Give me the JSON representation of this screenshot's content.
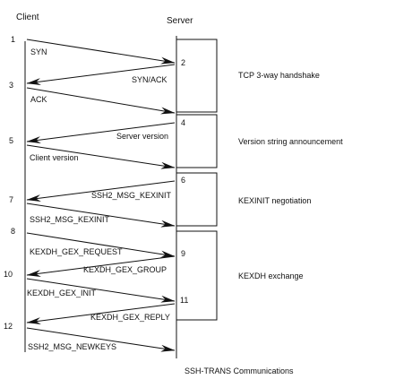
{
  "header": {
    "client": "Client",
    "server": "Server"
  },
  "client_steps": [
    "1",
    "3",
    "5",
    "7",
    "8",
    "10",
    "12"
  ],
  "server_steps": [
    "2",
    "4",
    "6",
    "9",
    "11"
  ],
  "messages": [
    {
      "id": "syn",
      "label": "SYN",
      "direction": "client-to-server"
    },
    {
      "id": "syn-ack",
      "label": "SYN/ACK",
      "direction": "server-to-client"
    },
    {
      "id": "ack",
      "label": "ACK",
      "direction": "client-to-server"
    },
    {
      "id": "server-version",
      "label": "Server version",
      "direction": "server-to-client"
    },
    {
      "id": "client-version",
      "label": "Client version",
      "direction": "client-to-server"
    },
    {
      "id": "server-kexinit",
      "label": "SSH2_MSG_KEXINIT",
      "direction": "server-to-client"
    },
    {
      "id": "client-kexinit",
      "label": "SSH2_MSG_KEXINIT",
      "direction": "client-to-server"
    },
    {
      "id": "gex-request",
      "label": "KEXDH_GEX_REQUEST",
      "direction": "client-to-server"
    },
    {
      "id": "gex-group",
      "label": "KEXDH_GEX_GROUP",
      "direction": "server-to-client"
    },
    {
      "id": "gex-init",
      "label": "KEXDH_GEX_INIT",
      "direction": "client-to-server"
    },
    {
      "id": "gex-reply",
      "label": "KEXDH_GEX_REPLY",
      "direction": "server-to-client"
    },
    {
      "id": "newkeys",
      "label": "SSH2_MSG_NEWKEYS",
      "direction": "client-to-server"
    }
  ],
  "phases": [
    {
      "id": "tcp",
      "label": "TCP 3-way handshake"
    },
    {
      "id": "version",
      "label": "Version string announcement"
    },
    {
      "id": "kexinit",
      "label": "KEXINIT negotiation"
    },
    {
      "id": "kexdh",
      "label": "KEXDH exchange"
    }
  ],
  "footer": "SSH-TRANS Communications",
  "colors": {
    "line": "#111111",
    "text": "#111111",
    "background": "#ffffff"
  }
}
